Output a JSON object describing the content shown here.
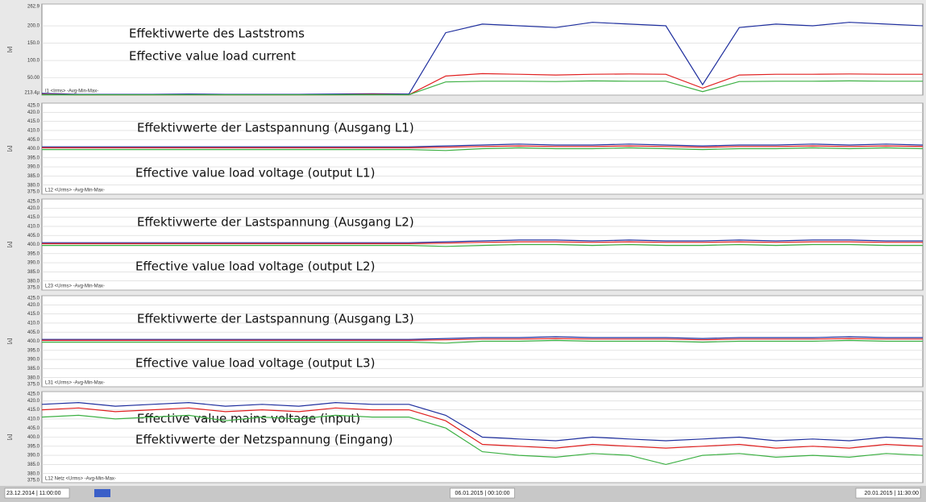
{
  "chart_data": [
    {
      "type": "line",
      "ylabel": "[A]",
      "annotations": [
        "Effektivwerte des Laststroms",
        "Effective value load current"
      ],
      "legend_label": "I1 <Irms> -Avg-Min-Max-",
      "ylim": [
        0.0002134,
        262.9
      ],
      "yticks": [
        {
          "value": 0.0002134,
          "label": "213.4µ"
        },
        {
          "value": 50,
          "label": "50.00"
        },
        {
          "value": 100,
          "label": "100.0"
        },
        {
          "value": 150,
          "label": "150.0"
        },
        {
          "value": 200,
          "label": "200.0"
        },
        262.9
      ],
      "grid": true,
      "series": [
        {
          "color": "#1f2f9e",
          "values": [
            5,
            2,
            2,
            2,
            3,
            2,
            2,
            2,
            3,
            4,
            3,
            180,
            205,
            200,
            195,
            210,
            205,
            200,
            30,
            195,
            205,
            200,
            210,
            205,
            200
          ]
        },
        {
          "color": "#e02020",
          "values": [
            2,
            1,
            1,
            1,
            1,
            1,
            1,
            1,
            1,
            2,
            1,
            55,
            62,
            60,
            58,
            60,
            61,
            60,
            20,
            58,
            60,
            60,
            61,
            60,
            60
          ]
        },
        {
          "color": "#3cb043",
          "values": [
            1,
            1,
            1,
            1,
            1,
            1,
            1,
            1,
            1,
            1,
            1,
            38,
            40,
            40,
            39,
            41,
            40,
            40,
            10,
            39,
            40,
            40,
            41,
            40,
            40
          ]
        }
      ]
    },
    {
      "type": "line",
      "ylabel": "[V]",
      "annotations": [
        "Effektivwerte der Lastspannung (Ausgang L1)",
        "Effective value load voltage (output L1)"
      ],
      "legend_label": "L12 <Urms> -Avg-Min-Max-",
      "ylim": [
        375,
        425
      ],
      "yticks": [
        {
          "value": 375,
          "label": "375.0"
        },
        {
          "value": 380,
          "label": "380.0"
        },
        {
          "value": 385,
          "label": "385.0"
        },
        {
          "value": 390,
          "label": "390.0"
        },
        {
          "value": 395,
          "label": "395.0"
        },
        {
          "value": 400,
          "label": "400.0"
        },
        {
          "value": 405,
          "label": "405.0"
        },
        {
          "value": 410,
          "label": "410.0"
        },
        {
          "value": 415,
          "label": "415.0"
        },
        {
          "value": 420,
          "label": "420.0"
        },
        {
          "value": 425,
          "label": "425.0"
        }
      ],
      "grid": true,
      "series": [
        {
          "color": "#1f2f9e",
          "values": [
            401,
            401,
            401,
            401,
            401,
            401,
            401,
            401,
            401,
            401,
            401,
            401.5,
            402,
            402.5,
            402,
            402,
            402.5,
            402,
            401.5,
            402,
            402,
            402.5,
            402,
            402.5,
            402
          ]
        },
        {
          "color": "#e02020",
          "values": [
            400.5,
            400.5,
            400.5,
            400.5,
            400.5,
            400.5,
            400.5,
            400.5,
            400.5,
            400.5,
            400.5,
            400.8,
            401.2,
            401.5,
            401.2,
            401.2,
            401.5,
            401.2,
            400.8,
            401.2,
            401.2,
            401.5,
            401.2,
            401.5,
            401.2
          ]
        },
        {
          "color": "#3cb043",
          "values": [
            399.5,
            399.5,
            399.5,
            399.5,
            399.5,
            399.5,
            399.5,
            399.5,
            399.5,
            399.5,
            399.5,
            399,
            400,
            400.5,
            400,
            400,
            400.5,
            400,
            399.5,
            400,
            400,
            400.5,
            400,
            400.5,
            400
          ]
        }
      ]
    },
    {
      "type": "line",
      "ylabel": "[V]",
      "annotations": [
        "Effektivwerte der Lastspannung (Ausgang L2)",
        "Effective value load voltage (output L2)"
      ],
      "legend_label": "L23 <Urms> -Avg-Min-Max-",
      "ylim": [
        375,
        425
      ],
      "yticks": [
        {
          "value": 375,
          "label": "375.0"
        },
        {
          "value": 380,
          "label": "380.0"
        },
        {
          "value": 385,
          "label": "385.0"
        },
        {
          "value": 390,
          "label": "390.0"
        },
        {
          "value": 395,
          "label": "395.0"
        },
        {
          "value": 400,
          "label": "400.0"
        },
        {
          "value": 405,
          "label": "405.0"
        },
        {
          "value": 410,
          "label": "410.0"
        },
        {
          "value": 415,
          "label": "415.0"
        },
        {
          "value": 420,
          "label": "420.0"
        },
        {
          "value": 425,
          "label": "425.0"
        }
      ],
      "grid": true,
      "series": [
        {
          "color": "#1f2f9e",
          "values": [
            401,
            401,
            401,
            401,
            401,
            401,
            401,
            401,
            401,
            401,
            401,
            401.5,
            402,
            402.5,
            402.5,
            402,
            402.5,
            402,
            402,
            402.5,
            402,
            402.5,
            402.5,
            402,
            402
          ]
        },
        {
          "color": "#e02020",
          "values": [
            400.5,
            400.5,
            400.5,
            400.5,
            400.5,
            400.5,
            400.5,
            400.5,
            400.5,
            400.5,
            400.5,
            400.8,
            401.2,
            401.5,
            401.5,
            401.2,
            401.5,
            401.2,
            401.2,
            401.5,
            401.2,
            401.5,
            401.5,
            401.2,
            401.2
          ]
        },
        {
          "color": "#3cb043",
          "values": [
            399.5,
            399.5,
            399.5,
            399.5,
            399.5,
            399.5,
            399.5,
            399.5,
            399.5,
            399.5,
            399.5,
            399,
            399.5,
            400,
            400,
            399.5,
            400,
            399.5,
            399.5,
            400,
            399.5,
            400,
            400,
            399.5,
            399.5
          ]
        }
      ]
    },
    {
      "type": "line",
      "ylabel": "[V]",
      "annotations": [
        "Effektivwerte der Lastspannung (Ausgang L3)",
        "Effective value load voltage (output L3)"
      ],
      "legend_label": "L31 <Urms> -Avg-Min-Max-",
      "ylim": [
        375,
        425
      ],
      "yticks": [
        {
          "value": 375,
          "label": "375.0"
        },
        {
          "value": 380,
          "label": "380.0"
        },
        {
          "value": 385,
          "label": "385.0"
        },
        {
          "value": 390,
          "label": "390.0"
        },
        {
          "value": 395,
          "label": "395.0"
        },
        {
          "value": 400,
          "label": "400.0"
        },
        {
          "value": 405,
          "label": "405.0"
        },
        {
          "value": 410,
          "label": "410.0"
        },
        {
          "value": 415,
          "label": "415.0"
        },
        {
          "value": 420,
          "label": "420.0"
        },
        {
          "value": 425,
          "label": "425.0"
        }
      ],
      "grid": true,
      "series": [
        {
          "color": "#1f2f9e",
          "values": [
            401,
            401,
            401,
            401,
            401,
            401,
            401,
            401,
            401,
            401,
            401,
            401.5,
            402,
            402,
            402.5,
            402,
            402,
            402,
            401.5,
            402,
            402,
            402,
            402.5,
            402,
            402
          ]
        },
        {
          "color": "#e02020",
          "values": [
            400.5,
            400.5,
            400.5,
            400.5,
            400.5,
            400.5,
            400.5,
            400.5,
            400.5,
            400.5,
            400.5,
            400.8,
            401.2,
            401.2,
            401.5,
            401.2,
            401.2,
            401.2,
            400.8,
            401.2,
            401.2,
            401.2,
            401.5,
            401.2,
            401.2
          ]
        },
        {
          "color": "#3cb043",
          "values": [
            399.5,
            399.5,
            399.5,
            399.5,
            399.5,
            399.5,
            399.5,
            399.5,
            399.5,
            399.5,
            399.5,
            399,
            400,
            400,
            400.5,
            400,
            400,
            400,
            399.5,
            400,
            400,
            400,
            400.5,
            400,
            400
          ]
        }
      ]
    },
    {
      "type": "line",
      "ylabel": "[V]",
      "annotations": [
        "Effective value mains voltage (input)",
        "Effektivwerte der Netzspannung (Eingang)"
      ],
      "legend_label": "L12 Netz <Urms> -Avg-Min-Max-",
      "ylim": [
        375,
        425
      ],
      "yticks": [
        {
          "value": 375,
          "label": "375.0"
        },
        {
          "value": 380,
          "label": "380.0"
        },
        {
          "value": 385,
          "label": "385.0"
        },
        {
          "value": 390,
          "label": "390.0"
        },
        {
          "value": 395,
          "label": "395.0"
        },
        {
          "value": 400,
          "label": "400.0"
        },
        {
          "value": 405,
          "label": "405.0"
        },
        {
          "value": 410,
          "label": "410.0"
        },
        {
          "value": 415,
          "label": "415.0"
        },
        {
          "value": 420,
          "label": "420.0"
        },
        {
          "value": 425,
          "label": "425.0"
        }
      ],
      "grid": true,
      "categories": [
        "23.12.2014 | 11:00:00",
        null,
        null,
        null,
        null,
        null,
        null,
        null,
        null,
        null,
        null,
        null,
        "06.01.2015 | 00:10:00",
        null,
        null,
        null,
        null,
        null,
        null,
        null,
        null,
        null,
        null,
        null,
        "20.01.2015 | 11:30:00"
      ],
      "series": [
        {
          "color": "#1f2f9e",
          "values": [
            418,
            419,
            417,
            418,
            419,
            417,
            418,
            417,
            419,
            418,
            418,
            412,
            400,
            399,
            398,
            400,
            399,
            398,
            399,
            400,
            398,
            399,
            398,
            400,
            399
          ]
        },
        {
          "color": "#e02020",
          "values": [
            415,
            416,
            414,
            415,
            416,
            414,
            415,
            414,
            416,
            415,
            415,
            409,
            396,
            395,
            394,
            396,
            395,
            394,
            395,
            396,
            394,
            395,
            394,
            396,
            395
          ]
        },
        {
          "color": "#3cb043",
          "values": [
            411,
            412,
            410,
            411,
            412,
            409,
            411,
            410,
            412,
            411,
            411,
            405,
            392,
            390,
            389,
            391,
            390,
            385,
            390,
            391,
            389,
            390,
            389,
            391,
            390
          ]
        }
      ]
    }
  ]
}
